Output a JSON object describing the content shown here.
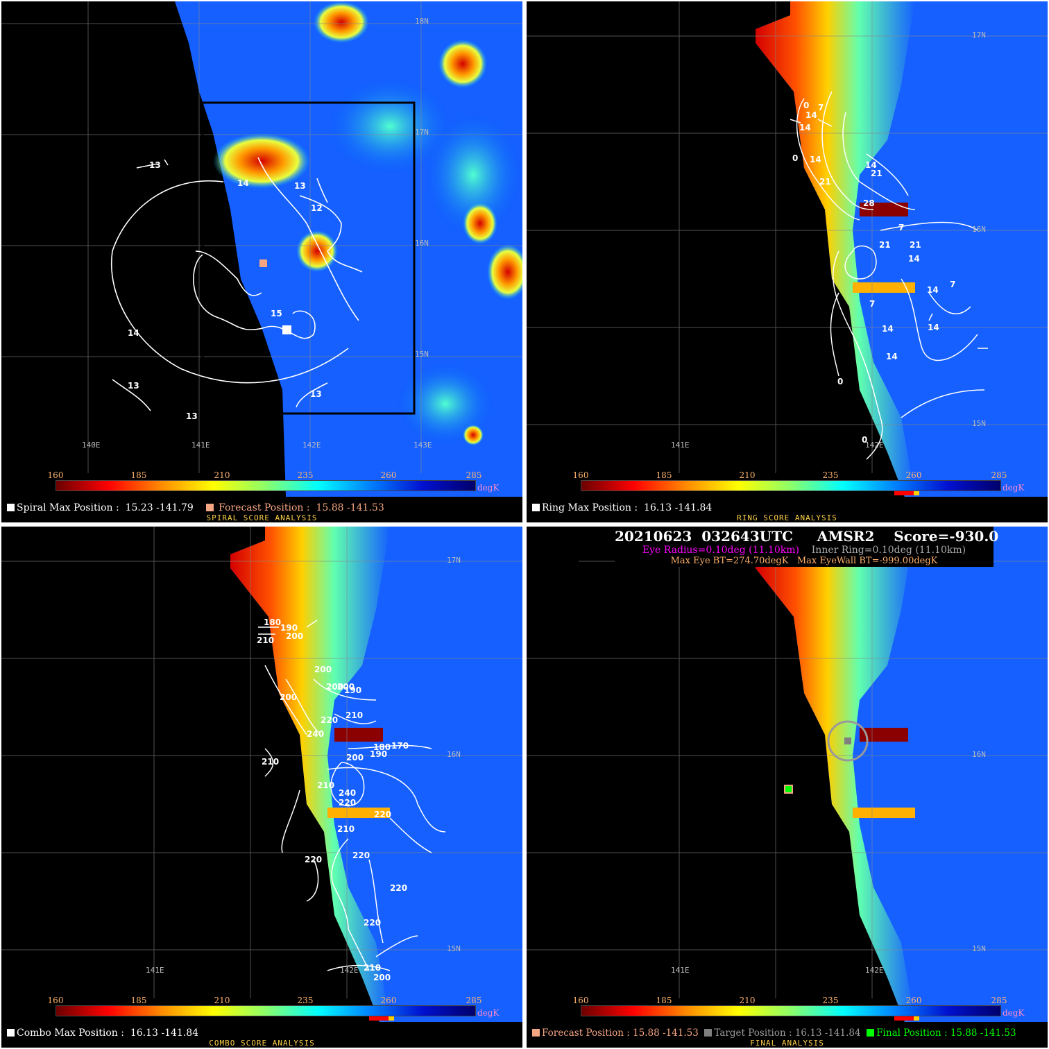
{
  "colorbar": {
    "ticks": [
      "160",
      "185",
      "210",
      "235",
      "260",
      "285"
    ],
    "unit": "degK"
  },
  "lon_labels": [
    "140E",
    "141E",
    "142E",
    "143E"
  ],
  "lat_labels": [
    "18N",
    "17N",
    "16N",
    "15N"
  ],
  "panels": [
    {
      "title": "SPIRAL SCORE ANALYSIS",
      "position_label": "Spiral Max Position :",
      "position_value": "15.23 -141.79",
      "forecast_label": "Forecast Position :",
      "forecast_value": "15.88 -141.53",
      "contour_labels": [
        "13",
        "14",
        "13",
        "12",
        "15",
        "14",
        "13",
        "13",
        "13"
      ]
    },
    {
      "title": "RING SCORE ANALYSIS",
      "position_label": "Ring Max Position :",
      "position_value": "16.13 -141.84",
      "contour_labels": [
        "0",
        "7",
        "14",
        "14",
        "0",
        "14",
        "14",
        "21",
        "21",
        "28",
        "21",
        "21",
        "14",
        "7",
        "14",
        "7",
        "14",
        "14",
        "14",
        "7",
        "0",
        "0"
      ]
    },
    {
      "title": "COMBO SCORE ANALYSIS",
      "position_label": "Combo Max Position :",
      "position_value": "16.13 -141.84",
      "contour_labels": [
        "180",
        "190",
        "200",
        "210",
        "200",
        "200",
        "200",
        "190",
        "200",
        "220",
        "210",
        "240",
        "180",
        "170",
        "200",
        "190",
        "210",
        "210",
        "240",
        "220",
        "220",
        "210",
        "220",
        "220",
        "220",
        "220",
        "210",
        "200"
      ]
    },
    {
      "title": "FINAL ANALYSIS",
      "header_line1": "20210623  032643UTC     AMSR2    Score=-930.0",
      "eye_radius": "Eye Radius=0.10deg (11.10km)",
      "inner_ring": "Inner Ring=0.10deg (11.10km)",
      "max_eye_bt": "Max Eye BT=274.70degK",
      "max_eyewall_bt": "Max EyeWall BT=-999.00degK",
      "forecast_label": "Forecast Position :",
      "forecast_value": "15.88 -141.53",
      "target_label": "Target Position :",
      "target_value": "16.13 -141.84",
      "final_label": "Final Position :",
      "final_value": "15.88 -141.53"
    }
  ],
  "colors": {
    "forecast": "#f4a582",
    "target": "#808080",
    "final": "#00ff00",
    "eye": "#ff00ff",
    "ring": "#aaaaaa"
  }
}
